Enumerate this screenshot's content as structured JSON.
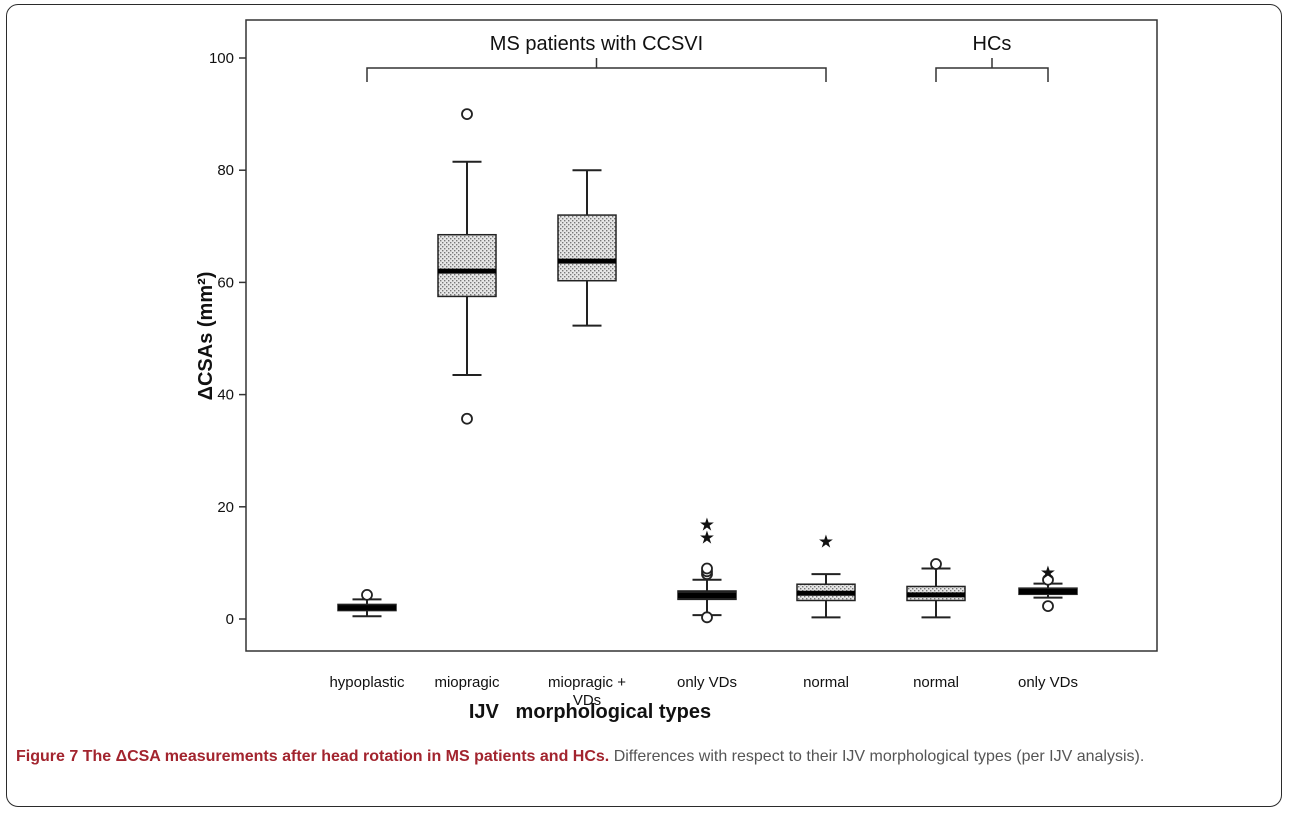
{
  "chart_data": {
    "type": "boxplot",
    "xlabel": "IJV   morphological types",
    "ylabel": "ΔCSAs (mm²)",
    "ylim": [
      -6,
      104
    ],
    "yticks": [
      0,
      20,
      40,
      60,
      80,
      100
    ],
    "grid": false,
    "groups": [
      {
        "label": "MS patients with CCSVI",
        "from": 0,
        "to": 4
      },
      {
        "label": "HCs",
        "from": 5,
        "to": 6
      }
    ],
    "boxes": [
      {
        "category": [
          "hypoplastic"
        ],
        "min": 0.5,
        "q1": 1.5,
        "median": 2.0,
        "q3": 2.6,
        "max": 3.5,
        "fill": "solid",
        "outliers": [
          4.3
        ],
        "extremes": []
      },
      {
        "category": [
          "miopragic"
        ],
        "min": 43.5,
        "q1": 57.5,
        "median": 62.0,
        "q3": 68.5,
        "max": 81.5,
        "fill": "pattern",
        "outliers": [
          90.0,
          35.7
        ],
        "extremes": []
      },
      {
        "category": [
          "miopragic +",
          "VDs"
        ],
        "min": 52.3,
        "q1": 60.3,
        "median": 63.8,
        "q3": 72.0,
        "max": 80.0,
        "fill": "pattern",
        "outliers": [],
        "extremes": []
      },
      {
        "category": [
          "only VDs"
        ],
        "min": 0.7,
        "q1": 3.5,
        "median": 4.2,
        "q3": 5.0,
        "max": 7.0,
        "fill": "solid",
        "outliers": [
          0.3,
          8.0,
          8.5,
          9.0
        ],
        "extremes": [
          14.7,
          17.0
        ]
      },
      {
        "category": [
          "normal"
        ],
        "min": 0.3,
        "q1": 3.3,
        "median": 4.6,
        "q3": 6.2,
        "max": 8.0,
        "fill": "pattern",
        "outliers": [],
        "extremes": [
          14.0
        ]
      },
      {
        "category": [
          "normal"
        ],
        "min": 0.3,
        "q1": 3.3,
        "median": 4.3,
        "q3": 5.8,
        "max": 9.0,
        "fill": "pattern",
        "outliers": [
          9.8
        ],
        "extremes": []
      },
      {
        "category": [
          "only VDs"
        ],
        "min": 3.8,
        "q1": 4.4,
        "median": 4.9,
        "q3": 5.5,
        "max": 6.3,
        "fill": "solid",
        "outliers": [
          2.3,
          7.0
        ],
        "extremes": [
          8.5
        ]
      }
    ]
  },
  "caption": {
    "bold": "Figure 7 The ΔCSA measurements after head rotation in MS patients and HCs.",
    "rest": " Differences with respect to their IJV morphological types (per IJV analysis)."
  }
}
